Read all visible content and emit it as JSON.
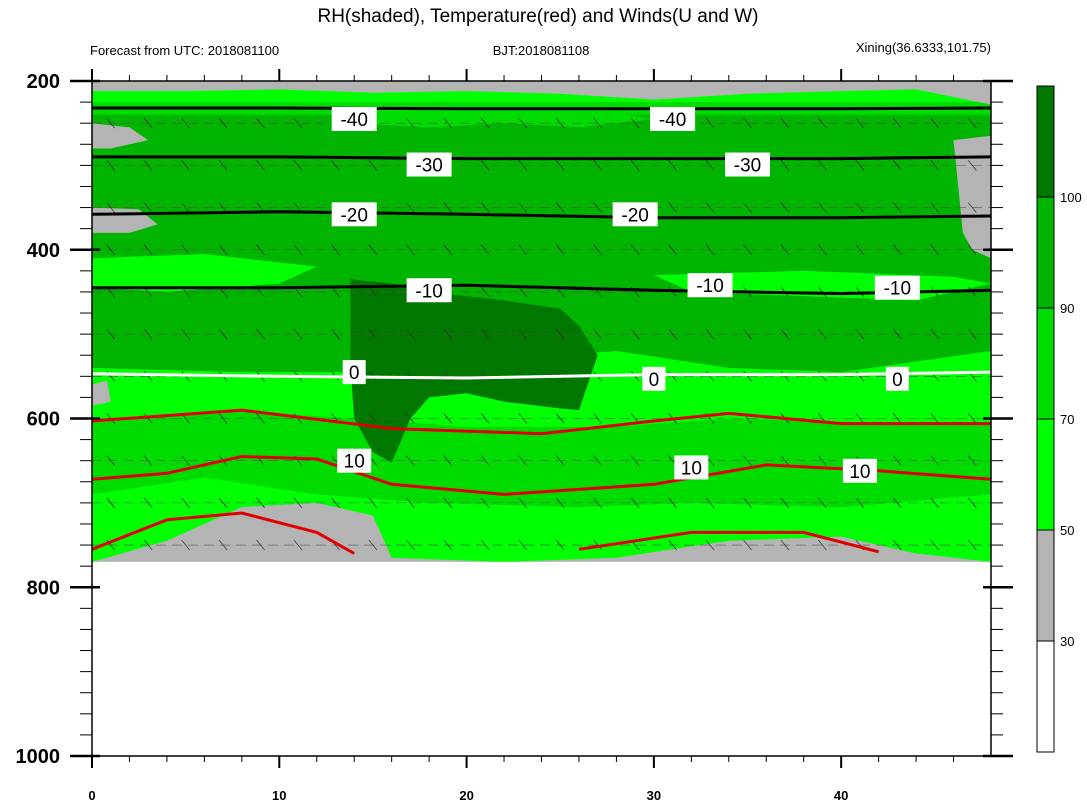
{
  "title": "RH(shaded), Temperature(red) and Winds(U and W)",
  "left_subtitle": "Forecast from UTC: 2018081100",
  "center_subtitle": "BJT:2018081108",
  "right_subtitle": "Xining(36.6333,101.75)",
  "chart_data": {
    "type": "heatmap",
    "title": "RH(shaded), Temperature(red) and Winds(U and W)",
    "xlim": [
      0,
      48
    ],
    "ylim": [
      1000,
      200
    ],
    "x_ticks": [
      0,
      10,
      20,
      30,
      40
    ],
    "y_ticks": [
      200,
      400,
      600,
      800,
      1000
    ],
    "colorbar": {
      "levels": [
        30,
        50,
        70,
        90,
        100
      ],
      "colors": [
        "#ffffff",
        "#b4b4b4",
        "#00ff00",
        "#00dc00",
        "#00b400",
        "#007800"
      ]
    },
    "grid": "dashed horizontal lines at wind levels",
    "temperature_contours": [
      {
        "label": "-40",
        "level": -40,
        "color": "black",
        "points": [
          [
            0,
            232
          ],
          [
            10,
            232
          ],
          [
            20,
            233
          ],
          [
            30,
            233
          ],
          [
            40,
            233
          ],
          [
            48,
            232
          ]
        ]
      },
      {
        "label": "-30",
        "level": -30,
        "color": "black",
        "points": [
          [
            0,
            290
          ],
          [
            10,
            290
          ],
          [
            20,
            292
          ],
          [
            30,
            292
          ],
          [
            40,
            292
          ],
          [
            48,
            290
          ]
        ]
      },
      {
        "label": "-20",
        "level": -20,
        "color": "black",
        "points": [
          [
            0,
            358
          ],
          [
            10,
            355
          ],
          [
            20,
            358
          ],
          [
            30,
            362
          ],
          [
            40,
            362
          ],
          [
            48,
            360
          ]
        ]
      },
      {
        "label": "-10",
        "level": -10,
        "color": "black",
        "points": [
          [
            0,
            445
          ],
          [
            10,
            445
          ],
          [
            20,
            442
          ],
          [
            30,
            448
          ],
          [
            40,
            452
          ],
          [
            48,
            448
          ]
        ]
      },
      {
        "label": "0",
        "level": 0,
        "color": "white",
        "points": [
          [
            0,
            547
          ],
          [
            10,
            550
          ],
          [
            20,
            552
          ],
          [
            30,
            548
          ],
          [
            40,
            548
          ],
          [
            48,
            545
          ]
        ]
      },
      {
        "label": "10",
        "level": 10,
        "color": "red",
        "points": [
          [
            0,
            672
          ],
          [
            4,
            665
          ],
          [
            8,
            645
          ],
          [
            12,
            648
          ],
          [
            16,
            678
          ],
          [
            22,
            690
          ],
          [
            30,
            678
          ],
          [
            36,
            655
          ],
          [
            42,
            662
          ],
          [
            48,
            672
          ]
        ]
      }
    ],
    "contour_labels": [
      "-40",
      "-30",
      "-20",
      "-10",
      "0",
      "10"
    ]
  }
}
